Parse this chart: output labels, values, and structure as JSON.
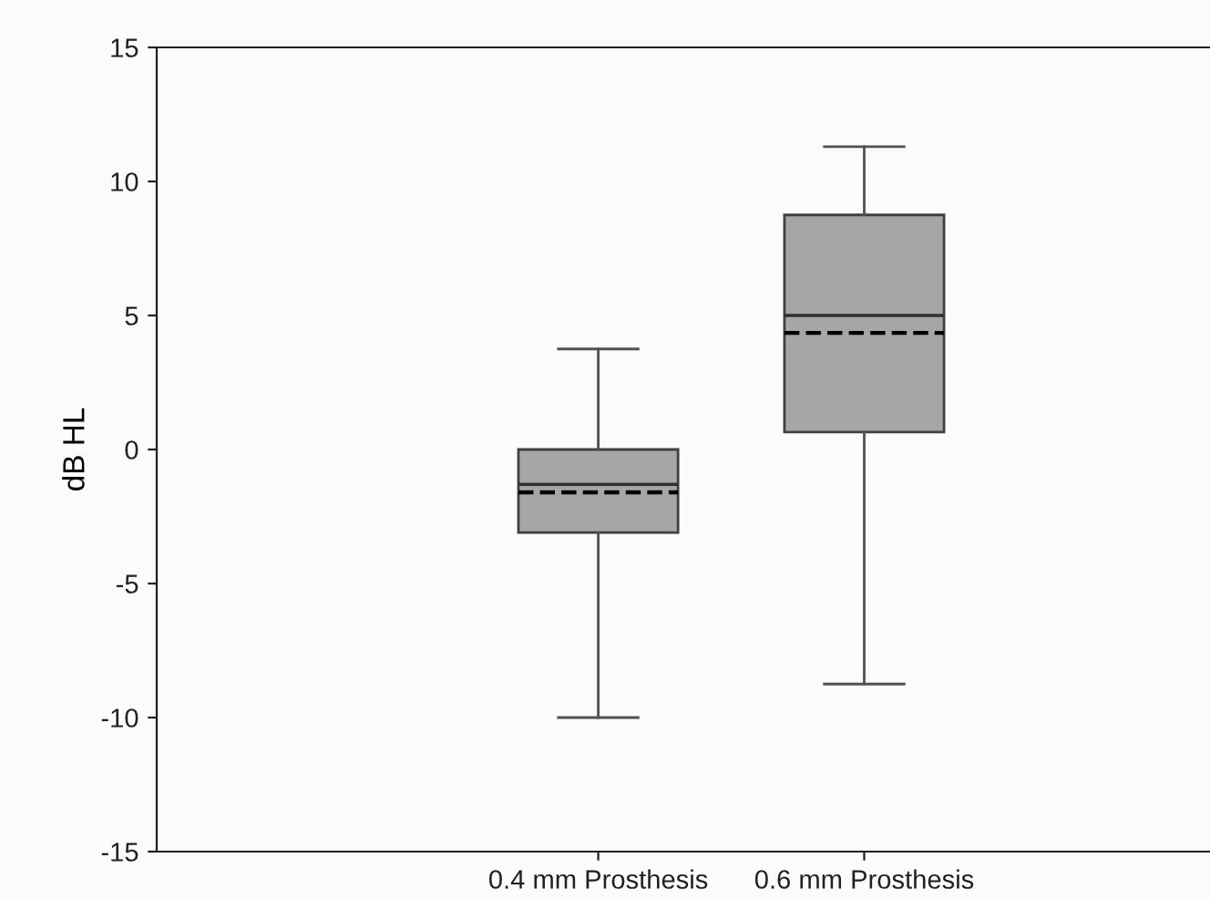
{
  "chart_data": {
    "type": "box",
    "ylabel": "dB HL",
    "categories": [
      "0.4 mm Prosthesis",
      "0.6 mm Prosthesis"
    ],
    "color": "#a6a6a6",
    "boxes": [
      {
        "low": -10,
        "q1": -3.1,
        "median": -1.3,
        "q3": 0,
        "high": 3.75,
        "mean": -1.6
      },
      {
        "low": -8.75,
        "q1": 0.65,
        "median": 5,
        "q3": 8.75,
        "high": 11.3,
        "mean": 4.35
      }
    ],
    "ylim": [
      -15,
      15
    ],
    "yticks": [
      -15,
      -10,
      -5,
      0,
      5,
      10,
      15
    ],
    "grid": false
  }
}
